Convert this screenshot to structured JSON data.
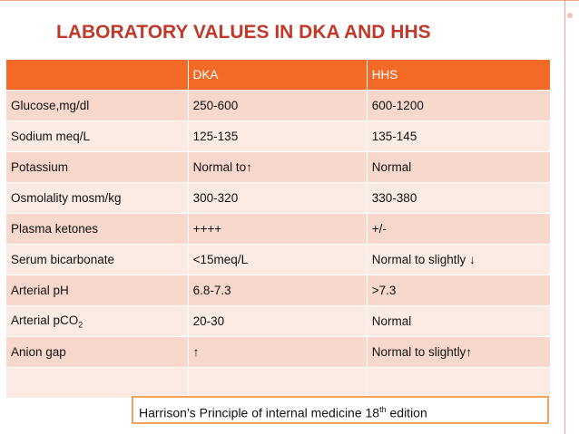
{
  "title": "LABORATORY VALUES IN DKA AND HHS",
  "table": {
    "headers": [
      "",
      "DKA",
      "HHS"
    ],
    "rows": [
      {
        "label": "Glucose,mg/dl",
        "label_sub": "",
        "dka": "250-600",
        "hhs": "600-1200"
      },
      {
        "label": "Sodium meq/L",
        "label_sub": "",
        "dka": "125-135",
        "hhs": "135-145"
      },
      {
        "label": "Potassium",
        "label_sub": "",
        "dka": "Normal to↑",
        "hhs": "Normal"
      },
      {
        "label": "Osmolality  mosm/kg",
        "label_sub": "",
        "dka": "300-320",
        "hhs": "330-380"
      },
      {
        "label": "Plasma ketones",
        "label_sub": "",
        "dka": "++++",
        "hhs": "+/-"
      },
      {
        "label": "Serum bicarbonate",
        "label_sub": "",
        "dka": "<15meq/L",
        "hhs": "Normal to slightly ↓"
      },
      {
        "label": "Arterial pH",
        "label_sub": "",
        "dka": "6.8-7.3",
        "hhs": ">7.3"
      },
      {
        "label": "Arterial pCO",
        "label_sub": "2",
        "dka": "20-30",
        "hhs": "Normal"
      },
      {
        "label": "Anion gap",
        "label_sub": "",
        "dka": "↑",
        "hhs": "Normal to slightly↑"
      },
      {
        "label": "",
        "label_sub": "",
        "dka": "",
        "hhs": ""
      }
    ]
  },
  "reference": {
    "text_before": "Harrison’s Principle of internal medicine 18",
    "superscript": "th",
    "text_after": " edition"
  }
}
